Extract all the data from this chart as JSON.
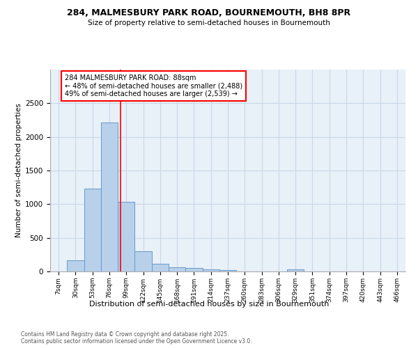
{
  "title1": "284, MALMESBURY PARK ROAD, BOURNEMOUTH, BH8 8PR",
  "title2": "Size of property relative to semi-detached houses in Bournemouth",
  "xlabel": "Distribution of semi-detached houses by size in Bournemouth",
  "ylabel": "Number of semi-detached properties",
  "annotation_title": "284 MALMESBURY PARK ROAD: 88sqm",
  "annotation_line1": "← 48% of semi-detached houses are smaller (2,488)",
  "annotation_line2": "49% of semi-detached houses are larger (2,539) →",
  "footnote1": "Contains HM Land Registry data © Crown copyright and database right 2025.",
  "footnote2": "Contains public sector information licensed under the Open Government Licence v3.0.",
  "bar_labels": [
    "7sqm",
    "30sqm",
    "53sqm",
    "76sqm",
    "99sqm",
    "122sqm",
    "145sqm",
    "168sqm",
    "191sqm",
    "214sqm",
    "237sqm",
    "260sqm",
    "283sqm",
    "306sqm",
    "329sqm",
    "351sqm",
    "374sqm",
    "397sqm",
    "420sqm",
    "443sqm",
    "466sqm"
  ],
  "bar_values": [
    5,
    165,
    1230,
    2210,
    1030,
    295,
    115,
    65,
    55,
    30,
    20,
    0,
    0,
    0,
    30,
    0,
    0,
    0,
    0,
    0,
    0
  ],
  "bar_color": "#b8d0ea",
  "bar_edge_color": "#6699cc",
  "grid_color": "#c8d8e8",
  "bg_color": "#e8f0f8",
  "red_line_x": 3.65,
  "ylim": [
    0,
    3000
  ],
  "yticks": [
    0,
    500,
    1000,
    1500,
    2000,
    2500
  ],
  "property_size": 88
}
